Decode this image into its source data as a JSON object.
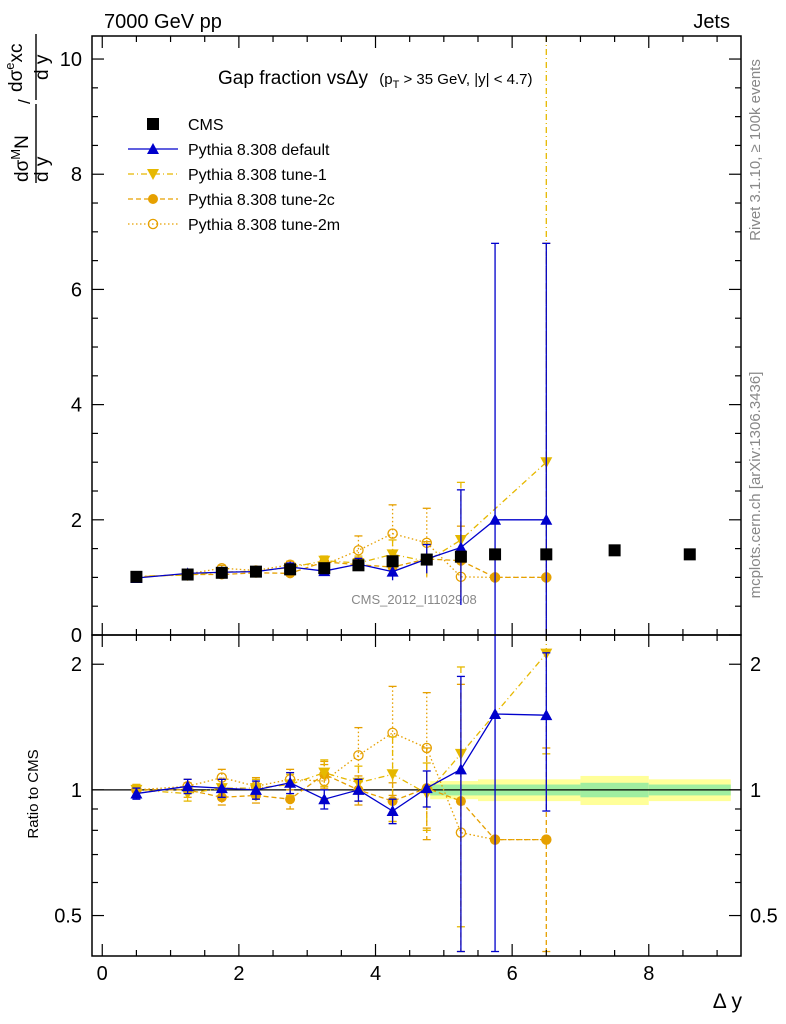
{
  "header": {
    "left": "7000 GeV pp",
    "right": "Jets"
  },
  "side_labels": {
    "rivet": "Rivet 3.1.10, ≥ 100k events",
    "mcplots": "mcplots.cern.ch [arXiv:1306.3436]"
  },
  "watermark": "CMS_2012_I1102908",
  "chart_data": {
    "type": "line",
    "title_main": "Gap fraction vsΔy",
    "title_sub_prefix": "(p",
    "title_sub_sub": "T",
    "title_sub_suffix": " > 35 GeV, |y| < 4.7)",
    "xlabel": "Δ y",
    "ylabel_top": "dσᴹN / dσᵉxc",
    "ylabel_top_parts": {
      "a": "d",
      "b": "σ",
      "c": "M",
      "d": "N",
      "e": "d",
      "f": "σ",
      "g": "e",
      "h": "xc",
      "den": "d y",
      "slash": "/"
    },
    "ylabel_bottom": "Ratio to CMS",
    "xlim": [
      -0.15,
      9.35
    ],
    "ylim_top": [
      0,
      10.4
    ],
    "ylim_bottom": [
      0.4,
      2.35
    ],
    "x_ticks": [
      "0",
      "2",
      "4",
      "6",
      "8"
    ],
    "y_ticks_top": [
      "0",
      "2",
      "4",
      "6",
      "8",
      "10"
    ],
    "y_ticks_bottom": [
      "0.5",
      "1",
      "2"
    ],
    "legend_position": "top-left",
    "series": [
      {
        "name": "CMS",
        "color": "#000000",
        "marker": "square",
        "x": [
          0.5,
          1.25,
          1.75,
          2.25,
          2.75,
          3.25,
          3.75,
          4.25,
          4.75,
          5.25,
          5.75,
          6.5,
          7.5,
          8.6
        ],
        "y": [
          1.01,
          1.05,
          1.08,
          1.1,
          1.14,
          1.16,
          1.21,
          1.28,
          1.31,
          1.36,
          1.4,
          1.4,
          1.47,
          1.4
        ]
      },
      {
        "name": "Pythia 8.308 default",
        "color": "#0000cc",
        "marker": "triangle-up",
        "dash": "solid",
        "x": [
          0.5,
          1.25,
          1.75,
          2.25,
          2.75,
          3.25,
          3.75,
          4.25,
          4.75,
          5.25,
          5.75,
          6.5
        ],
        "y": [
          0.99,
          1.07,
          1.09,
          1.1,
          1.18,
          1.11,
          1.23,
          1.1,
          1.32,
          1.52,
          2.0,
          2.0
        ],
        "err": [
          0.03,
          0.04,
          0.05,
          0.05,
          0.07,
          0.08,
          0.1,
          0.15,
          0.25,
          1.0,
          4.8,
          4.8
        ],
        "ratio": [
          0.98,
          1.02,
          1.01,
          1.0,
          1.04,
          0.95,
          1.0,
          0.89,
          1.01,
          1.12,
          1.52,
          1.51
        ],
        "ratio_err": [
          0.03,
          0.04,
          0.05,
          0.05,
          0.06,
          0.05,
          0.06,
          0.06,
          0.1,
          0.75,
          1.3,
          0.62
        ]
      },
      {
        "name": "Pythia 8.308 tune-1",
        "color": "#e6b800",
        "marker": "triangle-down",
        "dash": "6,3,1,3",
        "x": [
          0.5,
          1.25,
          1.75,
          2.25,
          2.75,
          3.25,
          3.75,
          4.25,
          4.75,
          5.25,
          6.5
        ],
        "y": [
          1.02,
          1.04,
          1.09,
          1.11,
          1.17,
          1.29,
          1.25,
          1.4,
          1.28,
          1.65,
          3.0
        ],
        "err": [
          0.03,
          0.04,
          0.05,
          0.05,
          0.06,
          0.08,
          0.12,
          0.25,
          0.3,
          1.0,
          7.5
        ],
        "ratio": [
          1.0,
          0.98,
          1.01,
          1.01,
          1.03,
          1.1,
          1.04,
          1.09,
          0.98,
          1.22,
          2.12
        ],
        "ratio_err": [
          0.03,
          0.04,
          0.05,
          0.05,
          0.06,
          0.08,
          0.1,
          0.25,
          0.18,
          0.75,
          0.9
        ]
      },
      {
        "name": "Pythia 8.308 tune-2c",
        "color": "#e6a000",
        "marker": "circle",
        "dash": "5,3",
        "x": [
          0.5,
          1.25,
          1.75,
          2.25,
          2.75,
          3.25,
          3.75,
          4.25,
          4.75,
          5.25,
          5.75,
          6.5
        ],
        "y": [
          1.01,
          1.05,
          1.05,
          1.08,
          1.07,
          1.27,
          1.22,
          1.18,
          1.32,
          1.29,
          1.0,
          1.0
        ],
        "err": [
          0.03,
          0.04,
          0.05,
          0.05,
          0.07,
          0.1,
          0.12,
          0.15,
          0.3,
          0.6,
          0.0,
          5.8
        ],
        "ratio": [
          1.0,
          1.0,
          0.96,
          0.97,
          0.95,
          1.09,
          1.0,
          0.94,
          1.01,
          0.94,
          0.76,
          0.76
        ],
        "ratio_err": [
          0.03,
          0.04,
          0.04,
          0.04,
          0.05,
          0.08,
          0.08,
          0.1,
          0.25,
          0.85,
          0.0,
          0.5
        ]
      },
      {
        "name": "Pythia 8.308 tune-2m",
        "color": "#e6a000",
        "marker": "circle-open",
        "dash": "1.5,2.5",
        "x": [
          0.5,
          1.25,
          1.75,
          2.25,
          2.75,
          3.25,
          3.75,
          4.25,
          4.75,
          5.25,
          5.75,
          6.5
        ],
        "y": [
          1.0,
          1.06,
          1.16,
          1.12,
          1.22,
          1.22,
          1.47,
          1.76,
          1.6,
          1.01,
          1.0,
          1.0
        ],
        "err": [
          0.03,
          0.04,
          0.05,
          0.05,
          0.06,
          0.12,
          0.25,
          0.5,
          0.6,
          0.0,
          0.0,
          0.0
        ],
        "ratio": [
          1.0,
          1.02,
          1.07,
          1.02,
          1.06,
          1.05,
          1.21,
          1.37,
          1.26,
          0.79,
          0.76,
          0.76
        ],
        "ratio_err": [
          0.03,
          0.04,
          0.05,
          0.05,
          0.06,
          0.1,
          0.2,
          0.4,
          0.45,
          0.0,
          0.0,
          0.0
        ]
      }
    ],
    "cms_ratio_band": [
      {
        "x0": 4.8,
        "x1": 5.5,
        "inner": 0.03,
        "outer": 0.05
      },
      {
        "x0": 5.5,
        "x1": 7.0,
        "inner": 0.03,
        "outer": 0.06
      },
      {
        "x0": 7.0,
        "x1": 8.0,
        "inner": 0.04,
        "outer": 0.08
      },
      {
        "x0": 8.0,
        "x1": 9.2,
        "inner": 0.03,
        "outer": 0.06
      }
    ]
  }
}
